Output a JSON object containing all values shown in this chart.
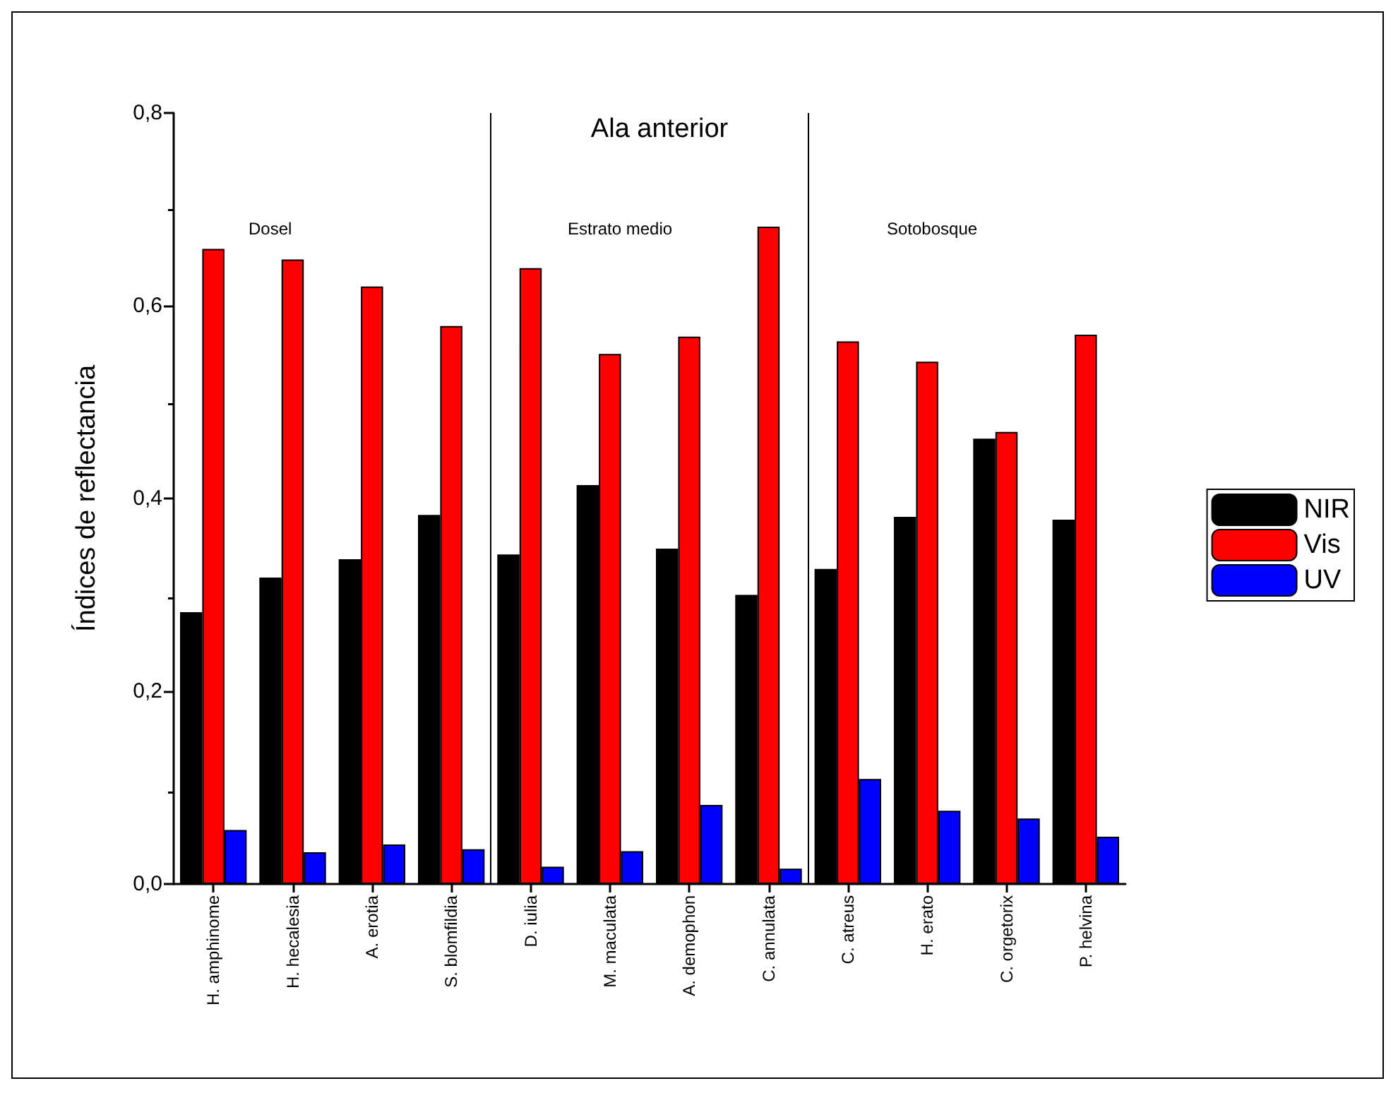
{
  "chart_data": {
    "type": "bar",
    "title": "Ala anterior",
    "ylabel": "Índices de reflectancia",
    "categories": [
      "H. amphinome",
      "H. hecalesia",
      "A. erotia",
      "S. blomfildia",
      "D. iulia",
      "M. maculata",
      "A. demophon",
      "C. annulata",
      "C. atreus",
      "H. erato",
      "C. orgetorix",
      "P. helvina"
    ],
    "series": [
      {
        "name": "NIR",
        "color": "#000000",
        "values": [
          0.282,
          0.318,
          0.337,
          0.383,
          0.342,
          0.414,
          0.348,
          0.3,
          0.327,
          0.381,
          0.462,
          0.378
        ]
      },
      {
        "name": "Vis",
        "color": "#ff0000",
        "values": [
          0.659,
          0.648,
          0.62,
          0.579,
          0.639,
          0.55,
          0.568,
          0.682,
          0.563,
          0.542,
          0.469,
          0.57
        ]
      },
      {
        "name": "UV",
        "color": "#0000ff",
        "values": [
          0.056,
          0.033,
          0.041,
          0.036,
          0.018,
          0.034,
          0.082,
          0.016,
          0.109,
          0.076,
          0.068,
          0.049
        ]
      }
    ],
    "ylim": [
      0,
      0.8
    ],
    "yticks": [
      {
        "value": 0,
        "label": "0,0"
      },
      {
        "value": 0.2,
        "label": "0,2"
      },
      {
        "value": 0.4,
        "label": "0,4"
      },
      {
        "value": 0.6,
        "label": "0,6"
      },
      {
        "value": 0.8,
        "label": "0,8"
      }
    ],
    "annotations": [
      "Dosel",
      "Estrato medio",
      "Sotobosque"
    ],
    "grid": false,
    "legend": "right"
  }
}
